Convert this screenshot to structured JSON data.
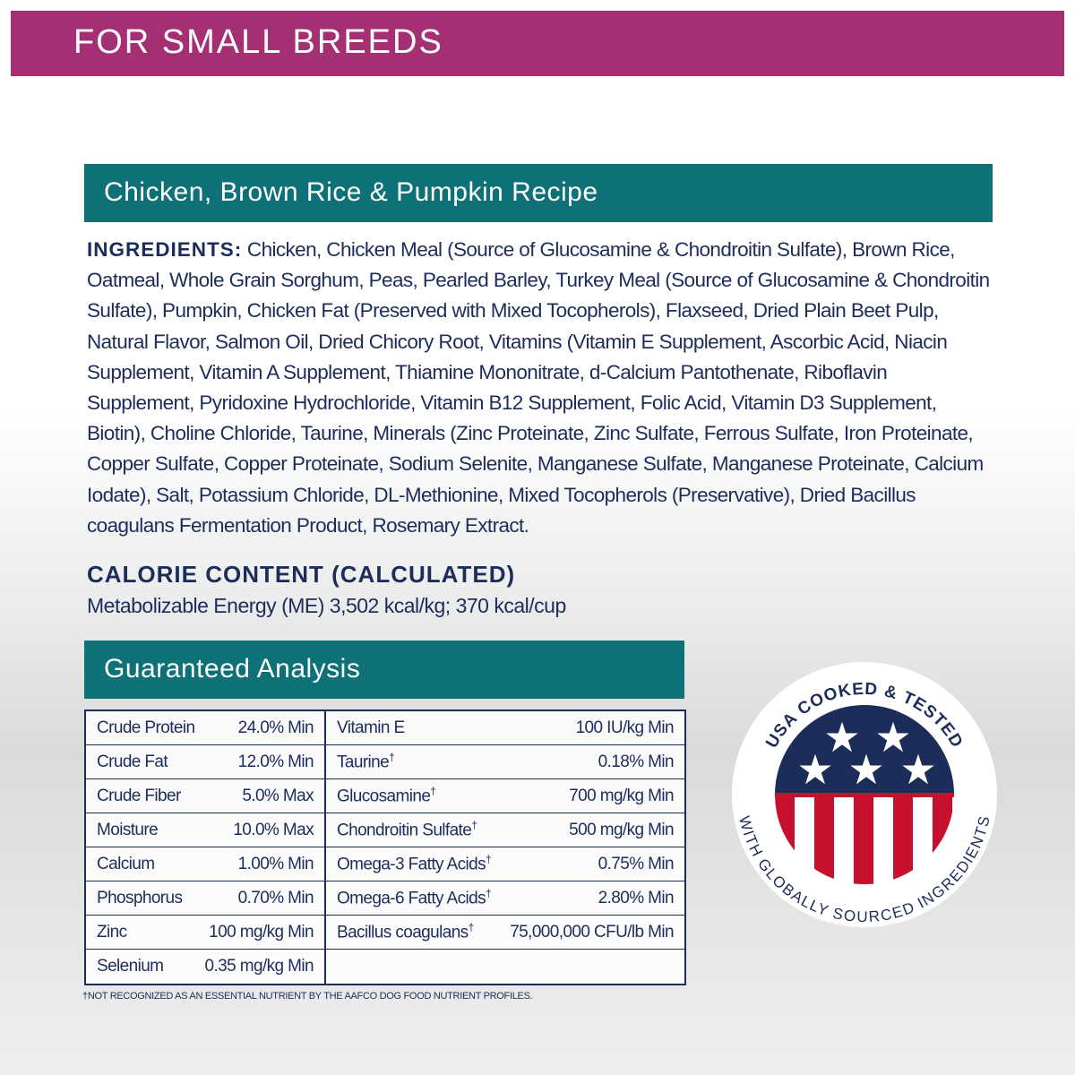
{
  "banner": "FOR SMALL BREEDS",
  "recipe_title": "Chicken, Brown Rice & Pumpkin Recipe",
  "ingredients": {
    "label": "INGREDIENTS:",
    "text": "Chicken, Chicken Meal (Source of Glucosamine & Chondroitin Sulfate), Brown Rice, Oatmeal, Whole Grain Sorghum, Peas, Pearled Barley, Turkey Meal (Source of Glucosamine & Chondroitin Sulfate), Pumpkin, Chicken Fat (Preserved with Mixed Tocopherols), Flaxseed, Dried Plain Beet Pulp, Natural Flavor, Salmon Oil, Dried Chicory Root, Vitamins (Vitamin E Supplement, Ascorbic Acid, Niacin Supplement, Vitamin A Supplement, Thiamine Mononitrate, d-Calcium Pantothenate, Riboflavin Supplement, Pyridoxine Hydrochloride, Vitamin B12 Supplement, Folic Acid, Vitamin D3 Supplement, Biotin), Choline Chloride, Taurine, Minerals (Zinc Proteinate, Zinc Sulfate, Ferrous Sulfate, Iron Proteinate, Copper Sulfate, Copper Proteinate, Sodium Selenite, Manganese Sulfate, Manganese Proteinate, Calcium Iodate), Salt, Potassium Chloride, DL-Methionine, Mixed Tocopherols (Preservative), Dried Bacillus coagulans Fermentation Product, Rosemary Extract."
  },
  "calorie": {
    "heading": "CALORIE CONTENT (CALCULATED)",
    "text": "Metabolizable Energy (ME) 3,502 kcal/kg; 370 kcal/cup"
  },
  "analysis": {
    "title": "Guaranteed Analysis",
    "left": [
      {
        "name": "Crude Protein",
        "value": "24.0% Min"
      },
      {
        "name": "Crude Fat",
        "value": "12.0% Min"
      },
      {
        "name": "Crude Fiber",
        "value": "5.0% Max"
      },
      {
        "name": "Moisture",
        "value": "10.0% Max"
      },
      {
        "name": "Calcium",
        "value": "1.00% Min"
      },
      {
        "name": "Phosphorus",
        "value": "0.70% Min"
      },
      {
        "name": "Zinc",
        "value": "100 mg/kg Min"
      },
      {
        "name": "Selenium",
        "value": "0.35 mg/kg Min"
      }
    ],
    "right": [
      {
        "name": "Vitamin E",
        "value": "100 IU/kg Min"
      },
      {
        "name": "Taurine",
        "mark": "†",
        "value": "0.18% Min"
      },
      {
        "name": "Glucosamine",
        "mark": "†",
        "value": "700 mg/kg Min"
      },
      {
        "name": "Chondroitin Sulfate",
        "mark": "†",
        "value": "500 mg/kg Min"
      },
      {
        "name": "Omega-3 Fatty Acids",
        "mark": "†",
        "value": "0.75% Min"
      },
      {
        "name": "Omega-6 Fatty Acids",
        "mark": "†",
        "value": "2.80% Min"
      },
      {
        "name": "Bacillus coagulans",
        "mark": "†",
        "value": "75,000,000 CFU/lb Min"
      }
    ]
  },
  "footnote": "†NOT RECOGNIZED AS AN ESSENTIAL NUTRIENT BY THE AAFCO DOG FOOD NUTRIENT PROFILES.",
  "badge": {
    "top": "USA COOKED & TESTED",
    "bottom": "WITH GLOBALLY SOURCED INGREDIENTS"
  }
}
